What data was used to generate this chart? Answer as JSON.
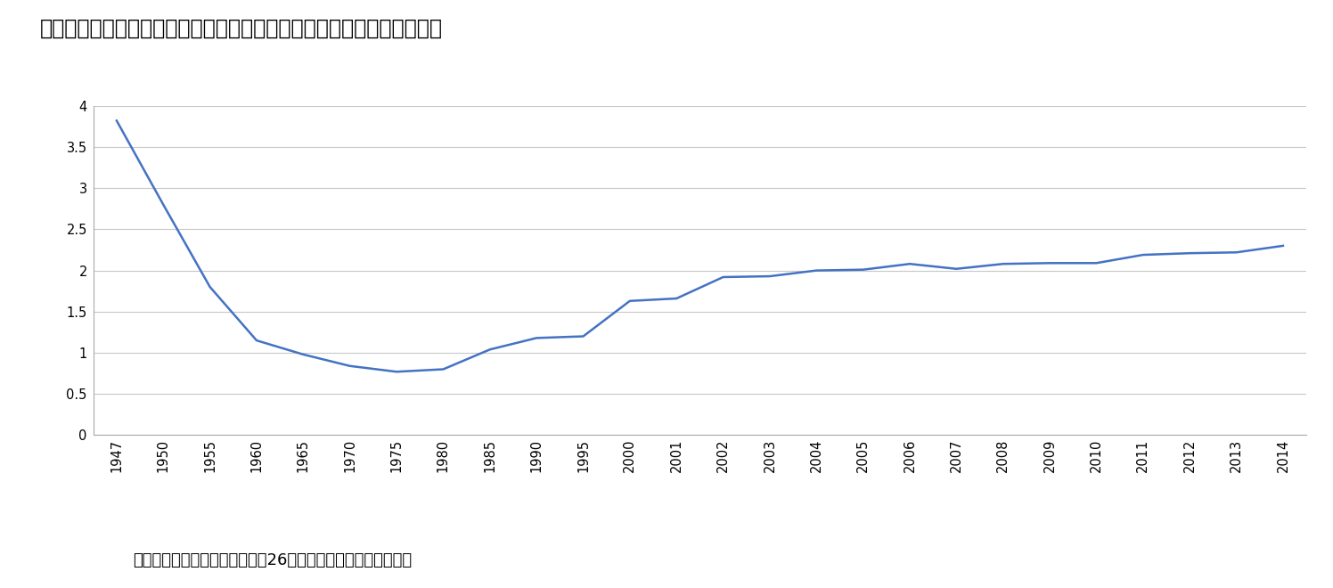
{
  "title": "『図表１』日本における婚外子比率の推移　　（縦軸：％　横軸：年）",
  "source_note": "（参考資料）厚生労働省　平成26年人口動態調査より筆者作成",
  "x_labels": [
    "1947",
    "1950",
    "1955",
    "1960",
    "1965",
    "1970",
    "1975",
    "1980",
    "1985",
    "1990",
    "1995",
    "2000",
    "2001",
    "2002",
    "2003",
    "2004",
    "2005",
    "2006",
    "2007",
    "2008",
    "2009",
    "2010",
    "2011",
    "2012",
    "2013",
    "2014"
  ],
  "y_values": [
    3.82,
    2.8,
    1.8,
    1.15,
    0.98,
    0.84,
    0.77,
    0.8,
    1.04,
    1.18,
    1.2,
    1.63,
    1.66,
    1.92,
    1.93,
    2.0,
    2.01,
    2.08,
    2.02,
    2.08,
    2.09,
    2.09,
    2.19,
    2.21,
    2.22,
    2.3
  ],
  "line_color": "#4472C4",
  "line_width": 1.8,
  "ylim": [
    0,
    4
  ],
  "yticks": [
    0,
    0.5,
    1,
    1.5,
    2,
    2.5,
    3,
    3.5,
    4
  ],
  "background_color": "#ffffff",
  "grid_color": "#c8c8c8",
  "title_fontsize": 17,
  "tick_fontsize": 10.5,
  "note_fontsize": 13
}
